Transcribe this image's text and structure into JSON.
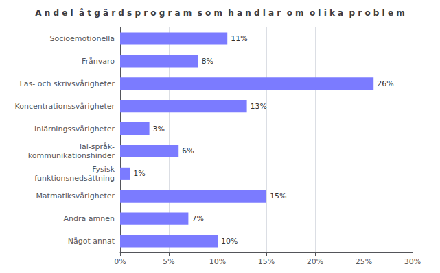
{
  "chart_data": {
    "type": "bar",
    "orientation": "horizontal",
    "title": "A n d e l  å t g ä r d s p r o g r a m  s o m  h a n d l a r  o m  o l i k a  p r o b l e m",
    "categories": [
      "Socioemotionella",
      "Frånvaro",
      "Läs- och skrivsvårigheter",
      "Koncentrationssvårigheter",
      "Inlärningssvårigheter",
      "Tal-språk-\nkommunikationshinder",
      "Fysisk\nfunktionsnedsättning",
      "Matmatiksvårigheter",
      "Andra ämnen",
      "Något annat"
    ],
    "values": [
      11,
      8,
      26,
      13,
      3,
      6,
      1,
      15,
      7,
      10
    ],
    "value_labels": [
      "11%",
      "8%",
      "26%",
      "13%",
      "3%",
      "6%",
      "1%",
      "15%",
      "7%",
      "10%"
    ],
    "data_labels": true,
    "color": "#7b7bff",
    "xlim": [
      0,
      30
    ],
    "xticks": [
      {
        "value": 0,
        "label": "0%"
      },
      {
        "value": 5,
        "label": "5%"
      },
      {
        "value": 10,
        "label": "10%"
      },
      {
        "value": 15,
        "label": "15%"
      },
      {
        "value": 20,
        "label": "20%"
      },
      {
        "value": 25,
        "label": "25%"
      },
      {
        "value": 30,
        "label": "30%"
      }
    ],
    "grid": true
  }
}
